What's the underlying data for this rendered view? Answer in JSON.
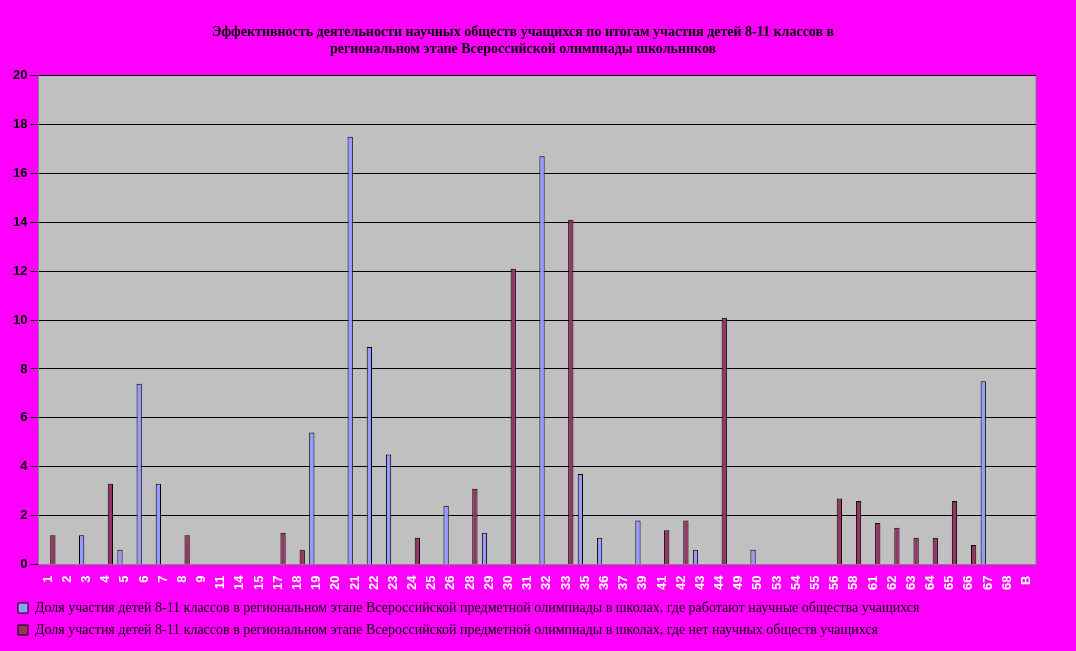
{
  "chart_data": {
    "type": "bar",
    "title": [
      "Эффективность деятельности научных обществ учащихся по итогам участия детей 8-11 классов в",
      "региональном этапе Всероссийской олимпиады школьников"
    ],
    "categories": [
      "1",
      "2",
      "3",
      "4",
      "5",
      "6",
      "7",
      "8",
      "9",
      "11",
      "14",
      "15",
      "17",
      "18",
      "19",
      "20",
      "21",
      "22",
      "23",
      "24",
      "25",
      "26",
      "28",
      "29",
      "30",
      "31",
      "32",
      "33",
      "35",
      "36",
      "37",
      "39",
      "41",
      "42",
      "43",
      "44",
      "49",
      "50",
      "53",
      "54",
      "55",
      "56",
      "58",
      "61",
      "62",
      "63",
      "64",
      "65",
      "66",
      "67",
      "68",
      "В"
    ],
    "series": [
      {
        "name": "Доля участия детей 8-11 классов в региональном этапе Всероссийской предметной олимпиады в школах, где работают научные общества учащихся",
        "color": "#9999ff",
        "values": [
          0,
          0,
          1.2,
          0,
          0.6,
          7.4,
          3.3,
          0,
          0,
          0,
          0,
          0,
          0,
          0,
          5.4,
          0,
          17.5,
          8.9,
          4.5,
          0,
          0,
          2.4,
          0,
          1.3,
          0,
          0,
          16.7,
          0,
          3.7,
          1.1,
          0,
          1.8,
          0,
          0,
          0.6,
          0,
          0,
          0.6,
          0,
          0,
          0,
          0,
          0,
          0,
          0,
          0,
          0,
          0,
          0,
          7.5,
          0,
          0
        ]
      },
      {
        "name": "Доля участия детей 8-11 классов в региональном этапе Всероссийской предметной олимпиады в школах, где нет научных обществ учащихся",
        "color": "#993366",
        "values": [
          1.2,
          0,
          0,
          3.3,
          0,
          0,
          0,
          1.2,
          0,
          0,
          0,
          0,
          1.3,
          0.6,
          0,
          0,
          0,
          0,
          0,
          1.1,
          0,
          0,
          3.1,
          0,
          12.1,
          0,
          0,
          14.1,
          0,
          0,
          0,
          0,
          1.4,
          1.8,
          0,
          10.1,
          0,
          0,
          0,
          0,
          0,
          2.7,
          2.6,
          1.7,
          1.5,
          1.1,
          1.1,
          2.6,
          0.8,
          0,
          0,
          0
        ]
      }
    ],
    "ylim": [
      0,
      20
    ],
    "yticks": [
      0,
      2,
      4,
      6,
      8,
      10,
      12,
      14,
      16,
      18,
      20
    ],
    "grid": "y",
    "legend": "bottom"
  }
}
